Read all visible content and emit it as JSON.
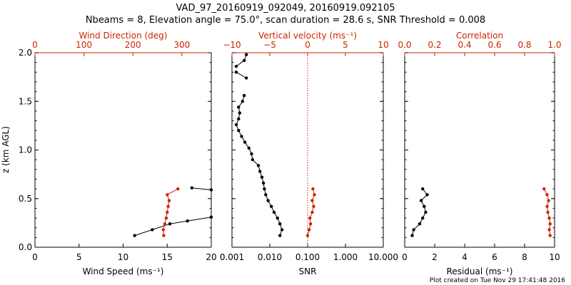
{
  "chart_data": {
    "title": "VAD_97_20160919_092049, 20160919.092105",
    "subtitle": "Nbeams = 8, Elevation angle = 75.0°, scan duration = 28.6 s, SNR Threshold = 0.008",
    "footer": "Plot created on Tue Nov 29 17:41:48 2016",
    "ylabel": "z (km AGL)",
    "ylim": [
      0.0,
      2.0
    ],
    "yticks": [
      "0.0",
      "0.5",
      "1.0",
      "1.5",
      "2.0"
    ],
    "colors": {
      "primary": "#000000",
      "secondary": "#cc2200"
    },
    "panels": [
      {
        "type": "scatter",
        "xlabel_bottom": "Wind Speed (ms⁻¹)",
        "xlabel_top": "Wind Direction (deg)",
        "xlim_bottom": [
          0,
          20
        ],
        "xlim_top": [
          0,
          360
        ],
        "xticks_bottom": [
          "0",
          "5",
          "10",
          "15",
          "20"
        ],
        "xticks_top": [
          "0",
          "100",
          "200",
          "300"
        ],
        "series": [
          {
            "axis": "bottom",
            "color": "#000000",
            "points": [
              [
                11.3,
                0.12
              ],
              [
                13.3,
                0.18
              ],
              [
                15.3,
                0.24
              ],
              [
                17.3,
                0.27
              ],
              [
                20.0,
                0.31
              ],
              [
                17.8,
                0.61
              ],
              [
                20.0,
                0.59
              ]
            ],
            "segments": [
              [
                0,
                5
              ],
              [
                5,
                7
              ]
            ]
          },
          {
            "axis": "top",
            "color": "#cc2200",
            "points": [
              [
                263,
                0.12
              ],
              [
                262,
                0.18
              ],
              [
                265,
                0.24
              ],
              [
                268,
                0.3
              ],
              [
                270,
                0.36
              ],
              [
                272,
                0.42
              ],
              [
                274,
                0.48
              ],
              [
                270,
                0.54
              ],
              [
                292,
                0.6
              ]
            ],
            "segments": [
              [
                0,
                9
              ]
            ]
          }
        ]
      },
      {
        "type": "scatter",
        "xlabel_bottom": "SNR",
        "xlabel_top": "Vertical velocity (ms⁻¹)",
        "xscale_bottom": "log",
        "xlim_bottom": [
          0.001,
          10.0
        ],
        "xlim_top": [
          -10,
          10
        ],
        "xticks_bottom": [
          "0.001",
          "0.010",
          "0.100",
          "1.000",
          "10.000"
        ],
        "xticks_top": [
          "−10",
          "−5",
          "0",
          "5",
          "10"
        ],
        "reference_line": {
          "axis": "bottom",
          "value": 0.1,
          "style": "dotted"
        },
        "series": [
          {
            "axis": "bottom",
            "color": "#000000",
            "points": [
              [
                0.0185,
                0.12
              ],
              [
                0.021,
                0.18
              ],
              [
                0.0185,
                0.24
              ],
              [
                0.016,
                0.3
              ],
              [
                0.013,
                0.36
              ],
              [
                0.011,
                0.42
              ],
              [
                0.009,
                0.48
              ],
              [
                0.0078,
                0.54
              ],
              [
                0.0072,
                0.6
              ],
              [
                0.0068,
                0.66
              ],
              [
                0.0062,
                0.72
              ],
              [
                0.0055,
                0.78
              ],
              [
                0.005,
                0.84
              ],
              [
                0.0035,
                0.9
              ],
              [
                0.0033,
                0.96
              ],
              [
                0.0028,
                1.02
              ],
              [
                0.0022,
                1.08
              ],
              [
                0.0018,
                1.14
              ],
              [
                0.0015,
                1.2
              ],
              [
                0.0013,
                1.26
              ],
              [
                0.0015,
                1.32
              ],
              [
                0.0016,
                1.38
              ],
              [
                0.0015,
                1.44
              ],
              [
                0.0019,
                1.5
              ],
              [
                0.0021,
                1.56
              ],
              [
                0.0024,
                1.74
              ],
              [
                0.0013,
                1.8
              ],
              [
                0.0013,
                1.86
              ],
              [
                0.0021,
                1.92
              ],
              [
                0.0024,
                1.98
              ]
            ],
            "segments": [
              [
                0,
                25
              ],
              [
                25,
                27
              ],
              [
                27,
                30
              ]
            ]
          },
          {
            "axis": "top",
            "color": "#cc2200",
            "points": [
              [
                0.0,
                0.12
              ],
              [
                0.2,
                0.18
              ],
              [
                0.4,
                0.24
              ],
              [
                0.3,
                0.3
              ],
              [
                0.6,
                0.36
              ],
              [
                0.8,
                0.42
              ],
              [
                0.6,
                0.48
              ],
              [
                0.9,
                0.54
              ],
              [
                0.7,
                0.6
              ]
            ],
            "segments": [
              [
                0,
                9
              ]
            ]
          }
        ]
      },
      {
        "type": "scatter",
        "xlabel_bottom": "Residual (ms⁻¹)",
        "xlabel_top": "Correlation",
        "xlim_bottom": [
          0,
          10
        ],
        "xlim_top": [
          0.0,
          1.0
        ],
        "xticks_bottom": [
          "0",
          "2",
          "4",
          "6",
          "8",
          "10"
        ],
        "xticks_top": [
          "0.0",
          "0.2",
          "0.4",
          "0.6",
          "0.8",
          "1.0"
        ],
        "series": [
          {
            "axis": "bottom",
            "color": "#000000",
            "points": [
              [
                0.5,
                0.12
              ],
              [
                0.6,
                0.18
              ],
              [
                1.0,
                0.24
              ],
              [
                1.2,
                0.3
              ],
              [
                1.4,
                0.36
              ],
              [
                1.3,
                0.42
              ],
              [
                1.1,
                0.48
              ],
              [
                1.5,
                0.54
              ],
              [
                1.2,
                0.6
              ]
            ],
            "segments": [
              [
                0,
                9
              ]
            ]
          },
          {
            "axis": "top",
            "color": "#cc2200",
            "points": [
              [
                0.97,
                0.12
              ],
              [
                0.965,
                0.18
              ],
              [
                0.97,
                0.24
              ],
              [
                0.965,
                0.3
              ],
              [
                0.955,
                0.36
              ],
              [
                0.95,
                0.42
              ],
              [
                0.96,
                0.48
              ],
              [
                0.95,
                0.54
              ],
              [
                0.93,
                0.6
              ]
            ],
            "segments": [
              [
                0,
                9
              ]
            ]
          }
        ]
      }
    ]
  }
}
